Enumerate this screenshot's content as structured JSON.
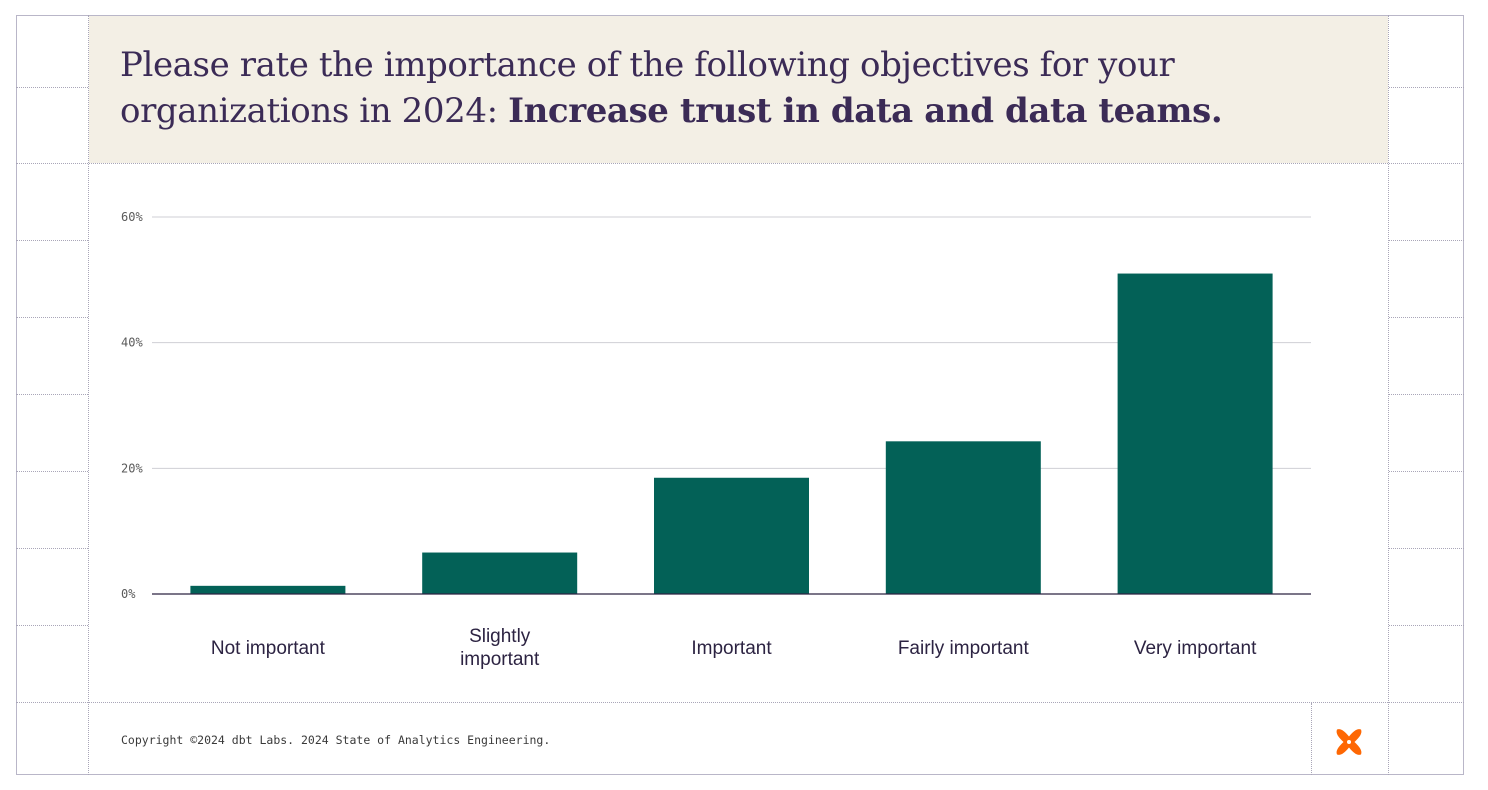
{
  "title": {
    "regular": "Please rate the importance of the following objectives for your organizations in 2024:",
    "bold": "Increase trust in data and data teams."
  },
  "chart_data": {
    "type": "bar",
    "title": "Please rate the importance of the following objectives for your organizations in 2024: Increase trust in data and data teams.",
    "categories": [
      "Not important",
      "Slightly important",
      "Important",
      "Fairly important",
      "Very important"
    ],
    "category_lines": [
      [
        "Not important"
      ],
      [
        "Slightly",
        "important"
      ],
      [
        "Important"
      ],
      [
        "Fairly important"
      ],
      [
        "Very important"
      ]
    ],
    "values": [
      1.3,
      6.6,
      18.5,
      24.3,
      51.0
    ],
    "yticks": [
      0,
      20,
      40,
      60
    ],
    "ytick_labels": [
      "0%",
      "20%",
      "40%",
      "60%"
    ],
    "ylim": [
      0,
      60
    ],
    "xlabel": "",
    "ylabel": "",
    "grid": true,
    "bar_color": "#036157"
  },
  "footer": {
    "copyright": "Copyright ©2024 dbt Labs. 2024 State of Analytics Engineering."
  },
  "logo": {
    "icon": "dbt-logo-icon",
    "color": "#fe6703"
  }
}
